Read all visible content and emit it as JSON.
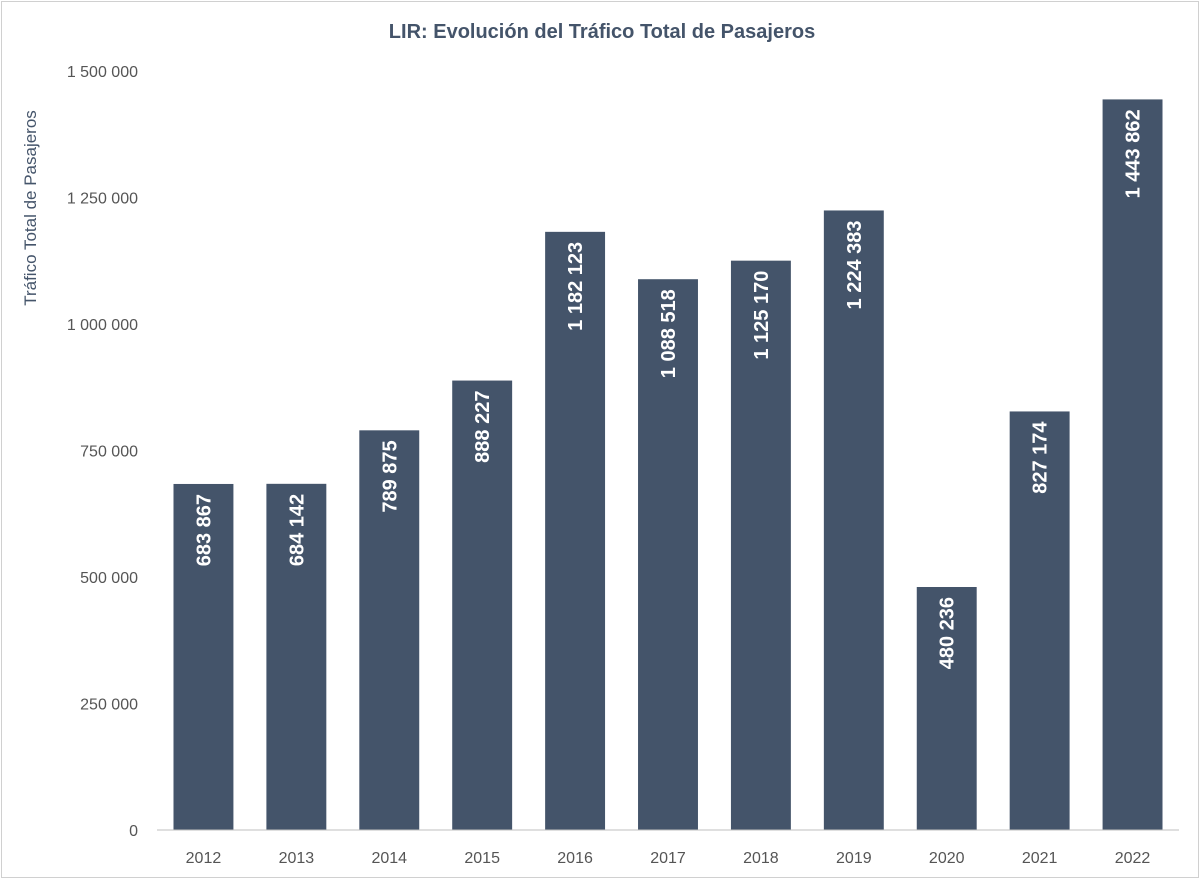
{
  "chart_data": {
    "type": "bar",
    "title": "LIR: Evolución del Tráfico Total de Pasajeros",
    "ylabel": "Tráfico Total de Pasajeros",
    "xlabel": "",
    "categories": [
      "2012",
      "2013",
      "2014",
      "2015",
      "2016",
      "2017",
      "2018",
      "2019",
      "2020",
      "2021",
      "2022"
    ],
    "values": [
      683867,
      684142,
      789875,
      888227,
      1182123,
      1088518,
      1125170,
      1224383,
      480236,
      827174,
      1443862
    ],
    "data_labels": [
      "683 867",
      "684 142",
      "789 875",
      "888 227",
      "1 182 123",
      "1 088 518",
      "1 125 170",
      "1 224 383",
      "480 236",
      "827 174",
      "1 443 862"
    ],
    "ylim": [
      0,
      1500000
    ],
    "yticks": [
      0,
      250000,
      500000,
      750000,
      1000000,
      1250000,
      1500000
    ],
    "ytick_labels": [
      "0",
      "250 000",
      "500 000",
      "750 000",
      "1 000 000",
      "1 250 000",
      "1 500 000"
    ],
    "bar_color": "#44546a",
    "label_color": "#ffffff",
    "grid": false,
    "legend": "none"
  }
}
